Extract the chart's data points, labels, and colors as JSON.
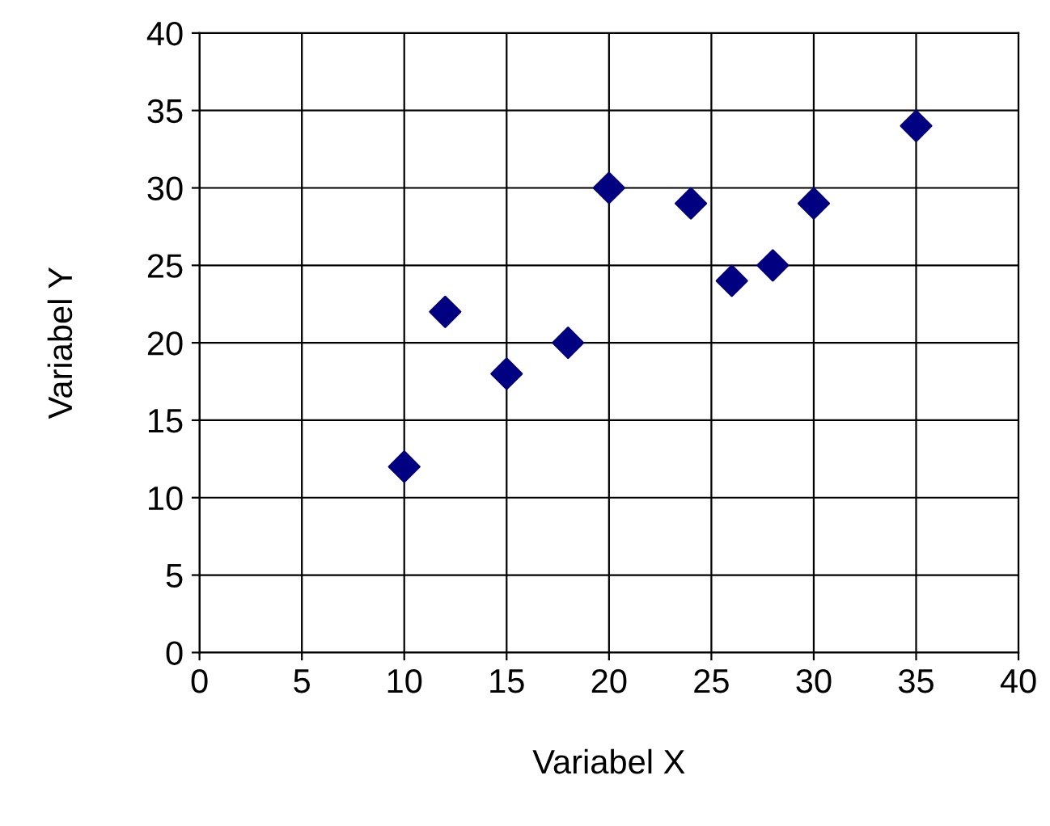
{
  "chart_data": {
    "type": "scatter",
    "xlabel": "Variabel X",
    "ylabel": "Variabel Y",
    "x": [
      10,
      12,
      15,
      18,
      20,
      24,
      26,
      28,
      30,
      35
    ],
    "series": [
      {
        "color": "#000080",
        "values": [
          12,
          22,
          18,
          20,
          30,
          29,
          24,
          25,
          29,
          34
        ]
      }
    ],
    "marker": "diamond",
    "grid": true,
    "xlim": [
      0,
      40
    ],
    "xticks": [
      0,
      5,
      10,
      15,
      20,
      25,
      30,
      35,
      40
    ],
    "ylim": [
      0,
      40
    ],
    "yticks": [
      0,
      5,
      10,
      15,
      20,
      25,
      30,
      35,
      40
    ]
  }
}
